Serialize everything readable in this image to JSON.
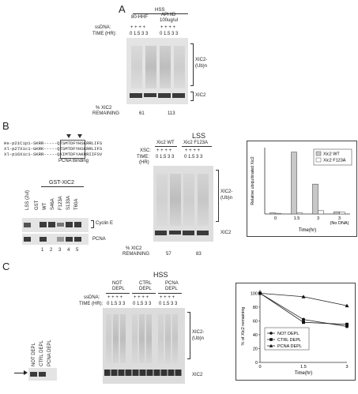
{
  "panelA": {
    "label": "A",
    "extract": "HSS",
    "cond1": "80-HHF",
    "cond2": "APHID",
    "cond2b": "100ug/ul",
    "ssdna_label": "ssDNA:",
    "time_label": "TIME (HR):",
    "plus": "+  +  +  +",
    "times1": "0 1.5 3  3",
    "times2": "0 1.5 3  3",
    "xic2_ub": "XIC2-",
    "xic2_ub2": "(Ub)n",
    "xic2": "XIC2",
    "remaining_label1": "% XIC2",
    "remaining_label2": "REMAINING",
    "remaining": [
      "61",
      "113"
    ]
  },
  "panelB": {
    "label": "B",
    "seq": [
      {
        "name": "Hs-p21Cip1-",
        "seq": "SKRR-----QTSMTDFYHSKRRLIFS"
      },
      {
        "name": "Xl-p27Xic1-",
        "seq": "GKRK-----QTSMTDFYHSKRRLIFS"
      },
      {
        "name": "Xl-p16Xic1-",
        "seq": "SKRR-----QKIMTDFYAKRRIIFSV"
      }
    ],
    "pcna_binding": "PCNA Binding",
    "gst_header": "GST-XIC2",
    "lanes_pd": [
      "LSS (2ul)",
      "GST",
      "WT",
      "S46A",
      "F123A",
      "S133A",
      "T60A"
    ],
    "cyclin": "Cyclin E",
    "pcna": "PCNA",
    "lane_nums": [
      "1",
      "2",
      "3",
      "4",
      "5"
    ],
    "lss": "LSS",
    "xic2wt": "Xic2 WT",
    "xic2f": "Xic2 F123A",
    "xsc_label": "XSC:",
    "time_label": "TIME:",
    "hr_label": "(HR)",
    "times": "0 1.5 3  3",
    "xic2_ub": "XIC2-",
    "xic2_ub2": "(Ub)n",
    "xic2": "XIC2",
    "remaining_label1": "% XIC2",
    "remaining_label2": "REMAINING",
    "remaining": [
      "57",
      "83"
    ]
  },
  "chart_data": [
    {
      "type": "bar",
      "categories": [
        "0",
        "1.5",
        "3",
        "3 (No DNA)"
      ],
      "series": [
        {
          "name": "Xic2 WT",
          "values": [
            0.5,
            28,
            13.5,
            1
          ]
        },
        {
          "name": "Xic2 F123A",
          "values": [
            0.3,
            0.5,
            1.5,
            0.8
          ]
        }
      ],
      "xlabel": "Time(hr)",
      "ylabel": "Relative ubiquitinated Xic2",
      "tick_labels": [
        "0",
        "1.5",
        "3",
        "3",
        "(No DNA)"
      ],
      "ylim": [
        0,
        30
      ],
      "legend": "top-right"
    },
    {
      "type": "line",
      "x": [
        0,
        1.5,
        3
      ],
      "series": [
        {
          "name": "NOT DEPL",
          "values": [
            100,
            62,
            52
          ]
        },
        {
          "name": "CTRL DEPL",
          "values": [
            100,
            58,
            55
          ]
        },
        {
          "name": "PCNA DEPL",
          "values": [
            100,
            95,
            82
          ]
        }
      ],
      "xlabel": "Time(hr)",
      "ylabel": "% of Xic2 remaining",
      "yticks": [
        "0",
        "20",
        "40",
        "60",
        "80",
        "100"
      ],
      "xticks": [
        "0",
        "1.5",
        "3"
      ],
      "ylim": [
        0,
        105
      ],
      "legend": "bottom-left"
    }
  ],
  "panelC": {
    "label": "C",
    "hss": "HSS",
    "blot_lanes": [
      "NOT DEPL",
      "CTRL DEPL",
      "PCNA DEPL"
    ],
    "g1": "NOT",
    "g1b": "DEPL",
    "g2": "CTRL",
    "g2b": "DEPL",
    "g3": "PCNA",
    "g3b": "DEPL",
    "ssdna_label": "ssDNA:",
    "time_label": "TIME (HR):",
    "times": "0 1.5 3  3",
    "xic2_ub": "XIC2-",
    "xic2_ub2": "(Ub)n",
    "xic2": "XIC2"
  },
  "colors": {
    "wt": "#c8c8c8",
    "f123a": "#ffffff",
    "axis": "#333333"
  }
}
